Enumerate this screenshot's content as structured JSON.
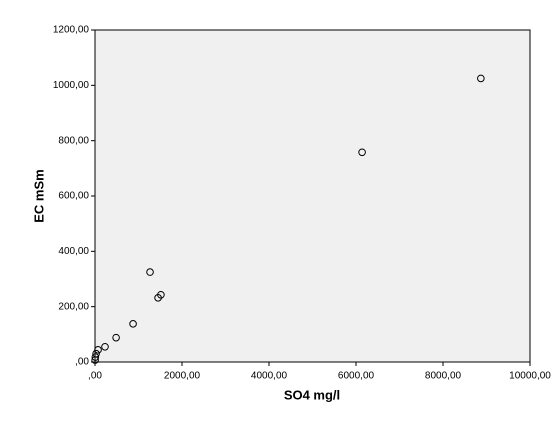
{
  "chart_data": {
    "type": "scatter",
    "x_label": "SO4 mg/l",
    "y_label": "EC mSm",
    "series": [
      {
        "color": "#000000",
        "x": [
          8870,
          6140,
          1265,
          1515,
          1450,
          875,
          485,
          230,
          70,
          25,
          8,
          3
        ],
        "values": [
          1025,
          758,
          325,
          243,
          232,
          138,
          88,
          55,
          44,
          30,
          18,
          7
        ]
      }
    ],
    "xlim": [
      0,
      10000
    ],
    "xticks": [
      {
        "value": 0,
        "label": ",00"
      },
      {
        "value": 2000,
        "label": "2000,00"
      },
      {
        "value": 4000,
        "label": "4000,00"
      },
      {
        "value": 6000,
        "label": "6000,00"
      },
      {
        "value": 8000,
        "label": "8000,00"
      },
      {
        "value": 10000,
        "label": "10000,00"
      }
    ],
    "ylim": [
      0,
      1200
    ],
    "yticks": [
      {
        "value": 0,
        "label": ",00"
      },
      {
        "value": 200,
        "label": "200,00"
      },
      {
        "value": 400,
        "label": "400,00"
      },
      {
        "value": 600,
        "label": "600,00"
      },
      {
        "value": 800,
        "label": "800,00"
      },
      {
        "value": 1000,
        "label": "1000,00"
      },
      {
        "value": 1200,
        "label": "1200,00"
      }
    ],
    "grid": false
  }
}
